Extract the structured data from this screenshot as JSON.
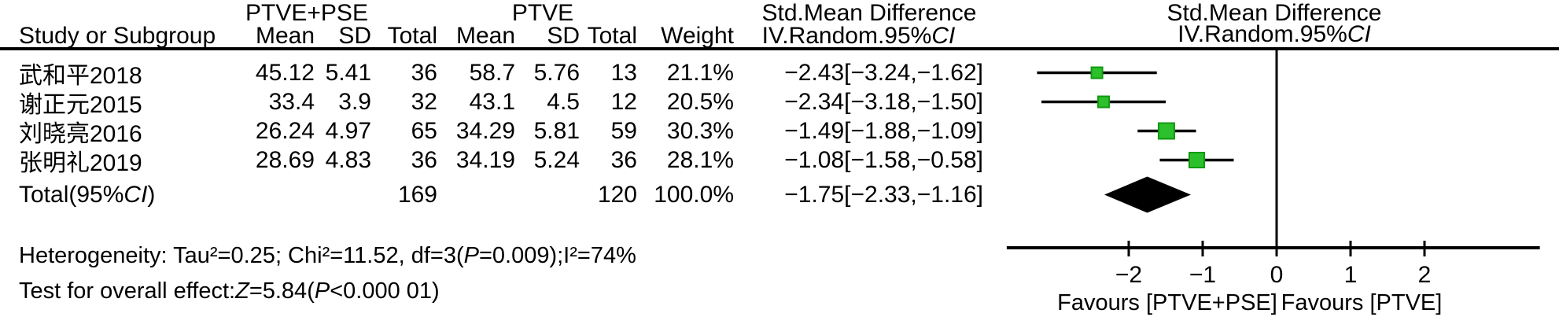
{
  "meta": {
    "background": "#ffffff",
    "text_color": "#000000",
    "marker_color": "#2CC12C",
    "marker_border_color": "#119911",
    "diamond_color": "#000000"
  },
  "table": {
    "group1_header": "PTVE+PSE",
    "group2_header": "PTVE",
    "col_study": "Study or Subgroup",
    "col_mean": "Mean",
    "col_sd": "SD",
    "col_total": "Total",
    "col_weight": "Weight",
    "smd_header_line1": "Std.Mean Difference",
    "smd_header_line2_prefix": "IV.Random.95%",
    "smd_header_line2_ci": "CI",
    "rows": [
      {
        "study": "武和平2018",
        "mean1": "45.12",
        "sd1": "5.41",
        "total1": "36",
        "mean2": "58.7",
        "sd2": "5.76",
        "total2": "13",
        "weight": "21.1%",
        "ci": "−2.43[−3.24,−1.62]"
      },
      {
        "study": "谢正元2015",
        "mean1": "33.4",
        "sd1": "3.9",
        "total1": "32",
        "mean2": "43.1",
        "sd2": "4.5",
        "total2": "12",
        "weight": "20.5%",
        "ci": "−2.34[−3.18,−1.50]"
      },
      {
        "study": "刘晓亮2016",
        "mean1": "26.24",
        "sd1": "4.97",
        "total1": "65",
        "mean2": "34.29",
        "sd2": "5.81",
        "total2": "59",
        "weight": "30.3%",
        "ci": "−1.49[−1.88,−1.09]"
      },
      {
        "study": "张明礼2019",
        "mean1": "28.69",
        "sd1": "4.83",
        "total1": "36",
        "mean2": "34.19",
        "sd2": "5.24",
        "total2": "36",
        "weight": "28.1%",
        "ci": "−1.08[−1.58,−0.58]"
      }
    ],
    "total_row": {
      "prefix": "Total(95%",
      "ci_label": "CI",
      "suffix": ")",
      "total1": "169",
      "total2": "120",
      "weight": "100.0%",
      "ci": "−1.75[−2.33,−1.16]"
    }
  },
  "plot_header": {
    "line1": "Std.Mean Difference",
    "line2_prefix": "IV.Random.95%",
    "line2_ci": "CI"
  },
  "footnotes": {
    "heterogeneity_prefix": "Heterogeneity: Tau²=0.25; Chi²=11.52, df=3(",
    "heterogeneity_p": "P",
    "heterogeneity_suffix": "=0.009);I²=74%",
    "test_prefix": "Test for overall effect:",
    "test_z": "Z",
    "test_mid": "=5.84(",
    "test_p": "P",
    "test_suffix": "<0.000 01)"
  },
  "chart_data": {
    "type": "forest",
    "title": "Std.Mean Difference",
    "method_label": "IV.Random.95%CI",
    "x_ticks": [
      -2,
      -1,
      0,
      1,
      2
    ],
    "tick_labels": [
      "−2",
      "−1",
      "0",
      "1",
      "2"
    ],
    "x_axis_range": [
      -3.65,
      3.56
    ],
    "zero_line_at": 0,
    "studies": [
      {
        "name": "武和平2018",
        "smd": -2.43,
        "ci_low": -3.24,
        "ci_high": -1.62,
        "weight_pct": 21.1
      },
      {
        "name": "谢正元2015",
        "smd": -2.34,
        "ci_low": -3.18,
        "ci_high": -1.5,
        "weight_pct": 20.5
      },
      {
        "name": "刘晓亮2016",
        "smd": -1.49,
        "ci_low": -1.88,
        "ci_high": -1.09,
        "weight_pct": 30.3
      },
      {
        "name": "张明礼2019",
        "smd": -1.08,
        "ci_low": -1.58,
        "ci_high": -0.58,
        "weight_pct": 28.1
      }
    ],
    "total": {
      "smd": -1.75,
      "ci_low": -2.33,
      "ci_high": -1.16,
      "weight_pct": 100.0
    },
    "favours_left": "Favours [PTVE+PSE]",
    "favours_right": "Favours [PTVE]",
    "marker_color": "#2CC12C",
    "marker_border_color": "#119911",
    "diamond_color": "#000000"
  }
}
